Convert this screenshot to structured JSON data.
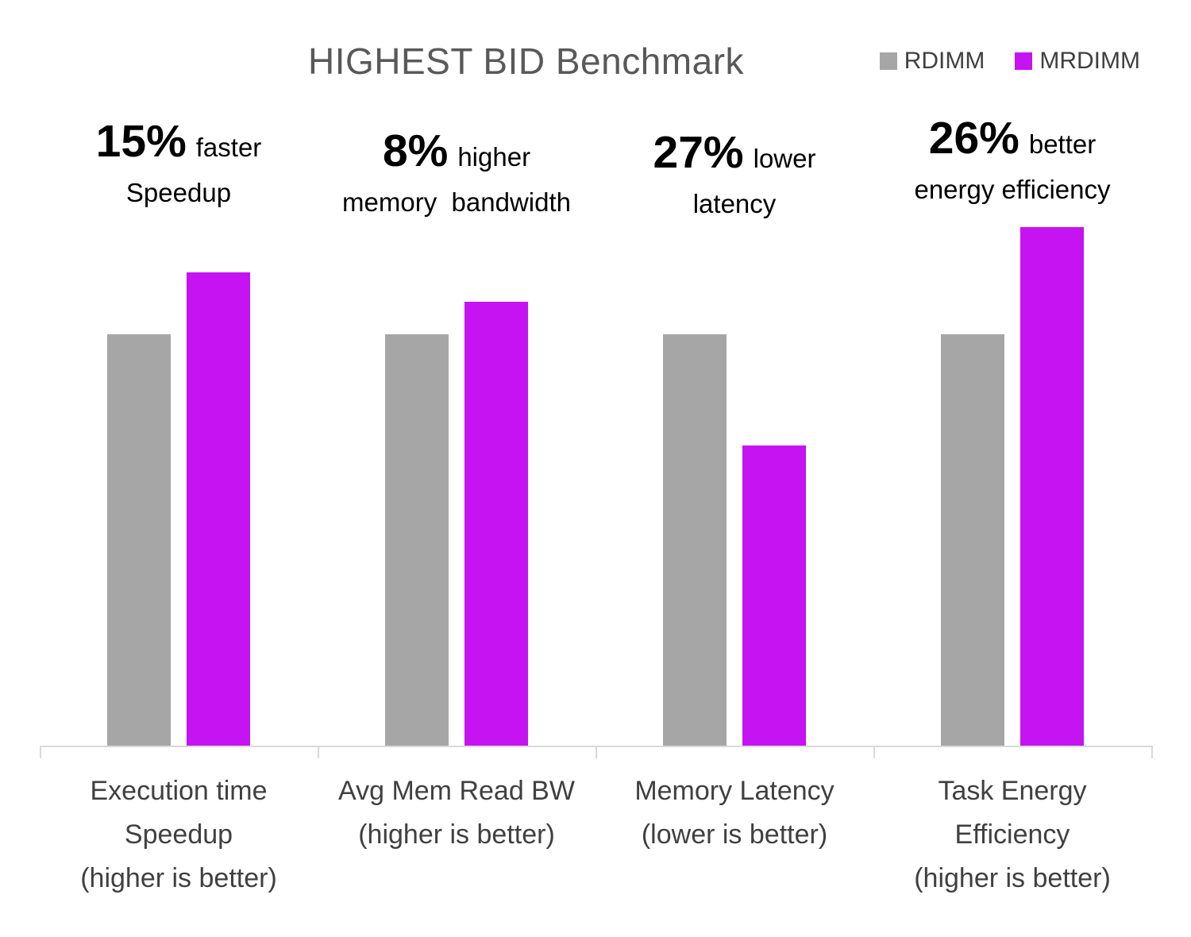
{
  "title": "HIGHEST BID Benchmark",
  "legend": {
    "items": [
      {
        "label": "RDIMM",
        "color": "#A6A6A6"
      },
      {
        "label": "MRDIMM",
        "color": "#C513F2"
      }
    ]
  },
  "colors": {
    "rdimm": "#A6A6A6",
    "mrdimm": "#C513F2",
    "title_text": "#595959",
    "annotation_text": "#000000",
    "category_text": "#404040",
    "axis_line": "#D9D9D9",
    "background": "#FFFFFF"
  },
  "chart_data": {
    "type": "bar",
    "title": "HIGHEST BID Benchmark",
    "categories": [
      [
        "Execution time",
        "Speedup",
        "(higher is better)"
      ],
      [
        "Avg Mem Read BW",
        "(higher is better)"
      ],
      [
        "Memory Latency",
        "(lower is better)"
      ],
      [
        "Task Energy",
        "Efficiency",
        "(higher is better)"
      ]
    ],
    "series": [
      {
        "name": "RDIMM",
        "color": "#A6A6A6",
        "values": [
          1.0,
          1.0,
          1.0,
          1.0
        ]
      },
      {
        "name": "MRDIMM",
        "color": "#C513F2",
        "values": [
          1.15,
          1.08,
          0.73,
          1.26
        ]
      }
    ],
    "annotations": [
      {
        "percent": "15%",
        "suffix": "faster",
        "line2": "Speedup"
      },
      {
        "percent": "8%",
        "suffix": "higher",
        "line2": "memory  bandwidth"
      },
      {
        "percent": "27%",
        "suffix": "lower",
        "line2": "latency"
      },
      {
        "percent": "26%",
        "suffix": "better",
        "line2": "energy efficiency"
      }
    ],
    "value_basis": "normalized, RDIMM = 1.0",
    "ylim": [
      0,
      1.45
    ],
    "grid": false,
    "y_axis_visible": false,
    "legend_position": "top-right"
  }
}
